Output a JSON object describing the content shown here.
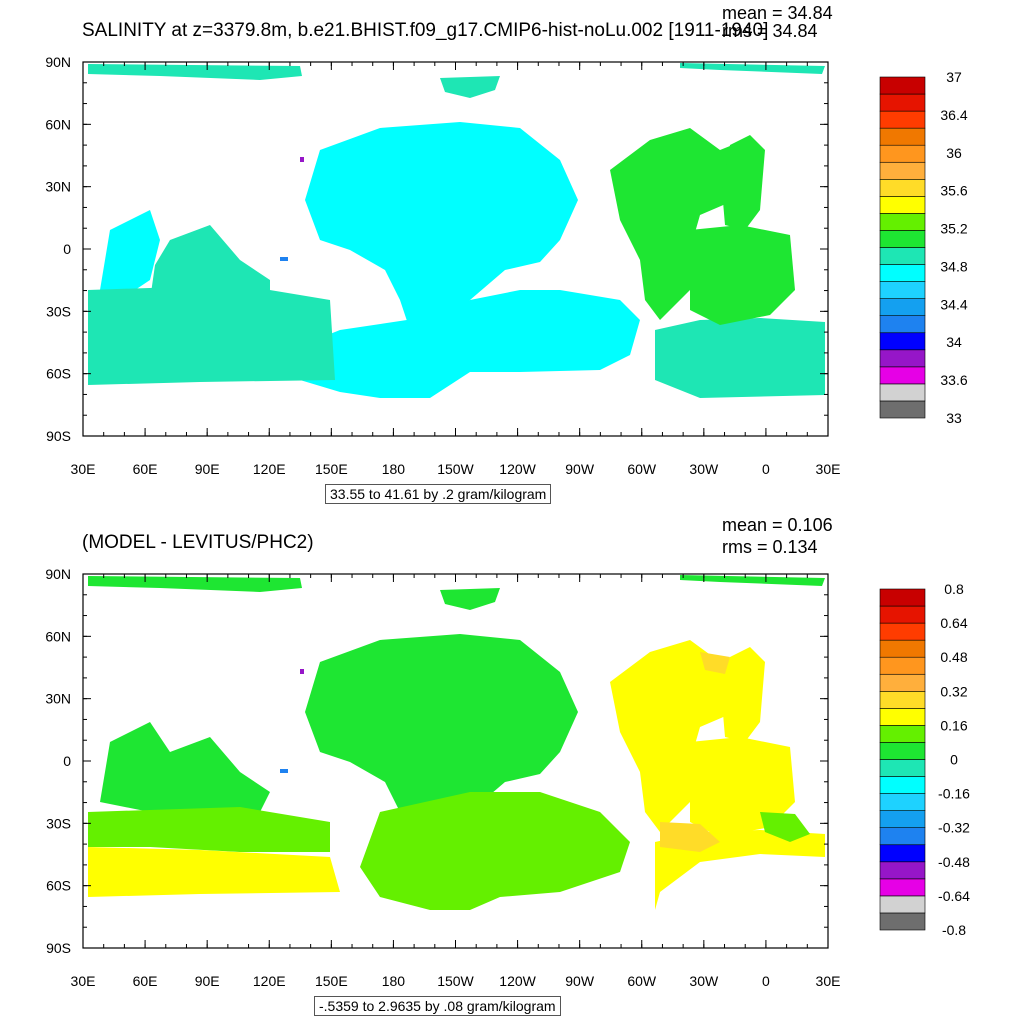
{
  "chart_data": [
    {
      "type": "heatmap",
      "title": "SALINITY at z=3379.8m, b.e21.BHIST.f09_g17.CMIP6-hist-noLu.002 [1911-1940]",
      "mean_label": "mean = 34.84",
      "rms_label": "rms = 34.84",
      "x_tick_labels": [
        "30E",
        "60E",
        "90E",
        "120E",
        "150E",
        "180",
        "150W",
        "120W",
        "90W",
        "60W",
        "30W",
        "0",
        "30E"
      ],
      "y_tick_labels": [
        "90N",
        "60N",
        "30N",
        "0",
        "30S",
        "60S",
        "90S"
      ],
      "xlim": [
        30,
        390
      ],
      "ylim": [
        -90,
        90
      ],
      "contour_info": "33.55 to 41.61 by .2 gram/kilogram",
      "colorbar": {
        "colors": [
          "#6e6e6e",
          "#d2d2d2",
          "#e600e6",
          "#9616c8",
          "#0000ff",
          "#1e82f0",
          "#14a0f0",
          "#1ed2ff",
          "#00ffff",
          "#1ee6b4",
          "#1ee632",
          "#64f000",
          "#ffff00",
          "#ffdc28",
          "#ffaf3c",
          "#ff961e",
          "#f07800",
          "#ff3c00",
          "#e61400",
          "#c80000"
        ],
        "labels": [
          "33",
          "33.6",
          "34",
          "34.4",
          "34.8",
          "35.2",
          "35.6",
          "36",
          "36.4",
          "37"
        ]
      },
      "regions_note": "Deep ocean salinity mostly 34.8-35.0 (cyan) in Pacific/Indian/Southern Oceans; 35.0-35.2 (green) in Atlantic."
    },
    {
      "type": "heatmap",
      "title": "(MODEL - LEVITUS/PHC2)",
      "mean_label": "mean = 0.106",
      "rms_label": "rms = 0.134",
      "x_tick_labels": [
        "30E",
        "60E",
        "90E",
        "120E",
        "150E",
        "180",
        "150W",
        "120W",
        "90W",
        "60W",
        "30W",
        "0",
        "30E"
      ],
      "y_tick_labels": [
        "90N",
        "60N",
        "30N",
        "0",
        "30S",
        "60S",
        "90S"
      ],
      "xlim": [
        30,
        390
      ],
      "ylim": [
        -90,
        90
      ],
      "contour_info": "-.5359 to 2.9635 by .08 gram/kilogram",
      "colorbar": {
        "colors": [
          "#6e6e6e",
          "#d2d2d2",
          "#e600e6",
          "#9616c8",
          "#0000ff",
          "#1e82f0",
          "#14a0f0",
          "#1ed2ff",
          "#00ffff",
          "#1ee6b4",
          "#1ee632",
          "#64f000",
          "#ffff00",
          "#ffdc28",
          "#ffaf3c",
          "#ff961e",
          "#f07800",
          "#ff3c00",
          "#e61400",
          "#c80000"
        ],
        "labels": [
          "-0.8",
          "-0.64",
          "-0.48",
          "-0.32",
          "-0.16",
          "0",
          "0.16",
          "0.32",
          "0.48",
          "0.64",
          "0.8"
        ]
      },
      "regions_note": "Pacific/Indian differences 0 to 0.16 (green); Atlantic and Southern mid-latitudes 0.16 to 0.32 (yellow)."
    }
  ]
}
